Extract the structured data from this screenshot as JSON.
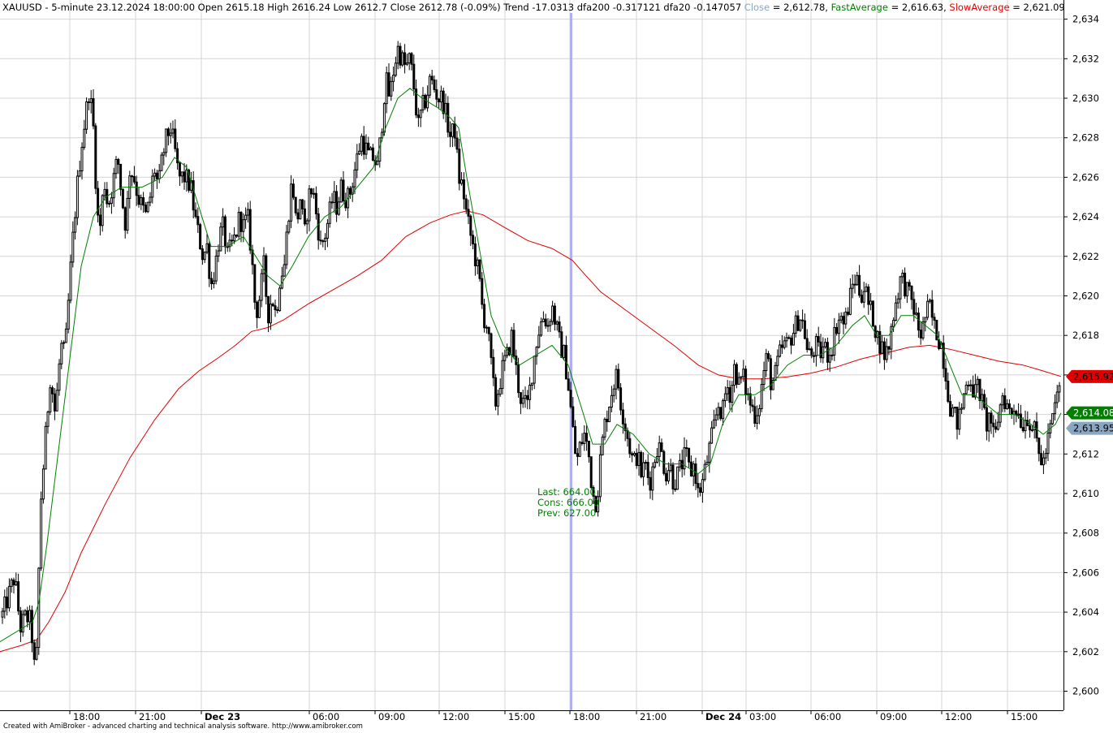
{
  "header": {
    "symbol_info": "XAUUSD - 5-minute 23.12.2024 18:00:00 Open 2615.18 High 2616.24 Low 2612.7 Close 2612.78 (-0.09%) Trend -17.0313 dfa200 -0.317121 dfa20 -0.147057",
    "close_label": "Close",
    "close_value": " = 2,612.78, ",
    "fast_label": "FastAverage",
    "fast_value": " = 2,616.63, ",
    "slow_label": "SlowAverage",
    "slow_value": " = 2,621.09"
  },
  "annotation": {
    "last": "Last: 664.00",
    "cons": "Cons: 666.00",
    "prev": "Prev: 627.00"
  },
  "price_tags": {
    "slow": "2,615.92",
    "fast": "2,614.08",
    "close": "2,613.95"
  },
  "footer": "Created with AmiBroker - advanced charting and technical analysis software. http://www.amibroker.com",
  "colors": {
    "close": "#8aa6c0",
    "fast": "#008000",
    "slow": "#e00000",
    "cursor": "#b0b0f0",
    "candle": "#000000"
  },
  "chart_data": {
    "type": "candlestick",
    "symbol": "XAUUSD",
    "interval": "5-minute",
    "y_axis": {
      "ylim": [
        2599.3,
        2634.8
      ],
      "ticks": [
        2600,
        2602,
        2604,
        2606,
        2608,
        2610,
        2612,
        2614,
        2616,
        2618,
        2620,
        2622,
        2624,
        2626,
        2628,
        2630,
        2632,
        2634
      ],
      "tick_labels": [
        "2,600",
        "2,602",
        "2,604",
        "2,606",
        "2,608",
        "2,610",
        "2,612",
        "2,614",
        "2,616",
        "2,618",
        "2,620",
        "2,622",
        "2,624",
        "2,626",
        "2,628",
        "2,630",
        "2,632",
        "2,634"
      ]
    },
    "x_axis": {
      "labels": [
        "18:00",
        "21:00",
        "Dec 23",
        "06:00",
        "09:00",
        "12:00",
        "15:00",
        "18:00",
        "21:00",
        "Dec 24",
        "03:00",
        "06:00",
        "09:00",
        "12:00",
        "15:00"
      ],
      "bold": [
        false,
        false,
        true,
        false,
        false,
        false,
        false,
        false,
        false,
        true,
        false,
        false,
        false,
        false,
        false
      ],
      "grid_lines": true
    },
    "price_path": [
      [
        0,
        2603.5
      ],
      [
        8,
        2604.5
      ],
      [
        18,
        2605.8
      ],
      [
        25,
        2603.2
      ],
      [
        32,
        2603.8
      ],
      [
        38,
        2603.5
      ],
      [
        44,
        2600.3
      ],
      [
        50,
        2609.5
      ],
      [
        56,
        2612.8
      ],
      [
        62,
        2616.0
      ],
      [
        68,
        2614.0
      ],
      [
        75,
        2617.5
      ],
      [
        80,
        2617.0
      ],
      [
        88,
        2622.0
      ],
      [
        95,
        2625.5
      ],
      [
        100,
        2627.5
      ],
      [
        105,
        2629.0
      ],
      [
        110,
        2630.5
      ],
      [
        115,
        2628.5
      ],
      [
        120,
        2624.0
      ],
      [
        124,
        2623.5
      ],
      [
        128,
        2626.0
      ],
      [
        133,
        2624.5
      ],
      [
        138,
        2625.5
      ],
      [
        145,
        2627.0
      ],
      [
        150,
        2625.0
      ],
      [
        155,
        2623.5
      ],
      [
        160,
        2626.5
      ],
      [
        165,
        2626.0
      ],
      [
        170,
        2625.0
      ],
      [
        175,
        2624.5
      ],
      [
        180,
        2624.0
      ],
      [
        185,
        2625.0
      ],
      [
        190,
        2626.5
      ],
      [
        195,
        2625.5
      ],
      [
        200,
        2627.0
      ],
      [
        205,
        2628.0
      ],
      [
        210,
        2628.5
      ],
      [
        215,
        2627.5
      ],
      [
        220,
        2626.0
      ],
      [
        228,
        2626.0
      ],
      [
        235,
        2625.5
      ],
      [
        240,
        2624.0
      ],
      [
        245,
        2623.0
      ],
      [
        250,
        2622.0
      ],
      [
        255,
        2622.5
      ],
      [
        260,
        2620.5
      ],
      [
        265,
        2621.5
      ],
      [
        270,
        2623.0
      ],
      [
        275,
        2623.5
      ],
      [
        280,
        2622.0
      ],
      [
        285,
        2622.5
      ],
      [
        290,
        2623.0
      ],
      [
        295,
        2624.0
      ],
      [
        300,
        2623.5
      ],
      [
        305,
        2624.0
      ],
      [
        310,
        2622.0
      ],
      [
        315,
        2619.0
      ],
      [
        320,
        2620.0
      ],
      [
        325,
        2621.5
      ],
      [
        330,
        2619.0
      ],
      [
        335,
        2620.0
      ],
      [
        340,
        2619.0
      ],
      [
        345,
        2621.0
      ],
      [
        350,
        2621.5
      ],
      [
        355,
        2624.0
      ],
      [
        360,
        2626.0
      ],
      [
        365,
        2623.5
      ],
      [
        370,
        2625.0
      ],
      [
        375,
        2623.0
      ],
      [
        380,
        2625.0
      ],
      [
        385,
        2625.5
      ],
      [
        390,
        2624.0
      ],
      [
        395,
        2622.5
      ],
      [
        400,
        2623.0
      ],
      [
        405,
        2624.0
      ],
      [
        410,
        2625.0
      ],
      [
        415,
        2624.5
      ],
      [
        420,
        2625.5
      ],
      [
        425,
        2625.0
      ],
      [
        430,
        2625.0
      ],
      [
        435,
        2626.0
      ],
      [
        440,
        2627.0
      ],
      [
        445,
        2628.0
      ],
      [
        450,
        2627.5
      ],
      [
        455,
        2627.0
      ],
      [
        460,
        2627.0
      ],
      [
        465,
        2626.5
      ],
      [
        470,
        2628.5
      ],
      [
        475,
        2631.0
      ],
      [
        480,
        2630.0
      ],
      [
        485,
        2631.5
      ],
      [
        490,
        2632.5
      ],
      [
        495,
        2632.0
      ],
      [
        500,
        2631.5
      ],
      [
        505,
        2632.0
      ],
      [
        510,
        2630.5
      ],
      [
        515,
        2628.5
      ],
      [
        520,
        2629.5
      ],
      [
        525,
        2630.0
      ],
      [
        530,
        2631.0
      ],
      [
        535,
        2630.5
      ],
      [
        540,
        2630.0
      ],
      [
        545,
        2630.0
      ],
      [
        550,
        2629.0
      ],
      [
        555,
        2628.0
      ],
      [
        560,
        2628.5
      ],
      [
        565,
        2626.0
      ],
      [
        570,
        2625.5
      ],
      [
        575,
        2624.0
      ],
      [
        580,
        2623.0
      ],
      [
        585,
        2622.0
      ],
      [
        590,
        2621.0
      ],
      [
        595,
        2619.0
      ],
      [
        600,
        2618.5
      ],
      [
        605,
        2616.5
      ],
      [
        610,
        2614.5
      ],
      [
        615,
        2615.5
      ],
      [
        620,
        2616.5
      ],
      [
        625,
        2617.0
      ],
      [
        630,
        2618.0
      ],
      [
        635,
        2616.5
      ],
      [
        640,
        2615.0
      ],
      [
        645,
        2614.5
      ],
      [
        650,
        2614.5
      ],
      [
        655,
        2616.0
      ],
      [
        660,
        2617.5
      ],
      [
        665,
        2618.5
      ],
      [
        670,
        2619.0
      ],
      [
        675,
        2618.5
      ],
      [
        680,
        2619.5
      ],
      [
        685,
        2618.5
      ],
      [
        690,
        2617.5
      ],
      [
        695,
        2617.0
      ],
      [
        700,
        2615.5
      ],
      [
        705,
        2613.5
      ],
      [
        710,
        2611.5
      ],
      [
        715,
        2612.5
      ],
      [
        720,
        2613.0
      ],
      [
        725,
        2612.0
      ],
      [
        730,
        2610.0
      ],
      [
        735,
        2609.5
      ],
      [
        740,
        2612.0
      ],
      [
        745,
        2613.5
      ],
      [
        750,
        2614.5
      ],
      [
        755,
        2615.5
      ],
      [
        760,
        2616.0
      ],
      [
        765,
        2614.5
      ],
      [
        770,
        2613.5
      ],
      [
        775,
        2612.5
      ],
      [
        780,
        2611.5
      ],
      [
        785,
        2612.0
      ],
      [
        790,
        2611.0
      ],
      [
        795,
        2611.5
      ],
      [
        800,
        2610.5
      ],
      [
        805,
        2611.5
      ],
      [
        810,
        2612.5
      ],
      [
        815,
        2612.0
      ],
      [
        820,
        2611.0
      ],
      [
        825,
        2611.5
      ],
      [
        830,
        2610.5
      ],
      [
        835,
        2611.0
      ],
      [
        840,
        2611.5
      ],
      [
        845,
        2612.0
      ],
      [
        850,
        2611.0
      ],
      [
        855,
        2611.5
      ],
      [
        860,
        2610.0
      ],
      [
        865,
        2610.5
      ],
      [
        870,
        2611.5
      ],
      [
        875,
        2612.5
      ],
      [
        880,
        2613.5
      ],
      [
        885,
        2614.5
      ],
      [
        890,
        2614.0
      ],
      [
        895,
        2615.5
      ],
      [
        900,
        2615.0
      ],
      [
        905,
        2616.5
      ],
      [
        910,
        2615.5
      ],
      [
        915,
        2616.0
      ],
      [
        920,
        2615.0
      ],
      [
        925,
        2614.5
      ],
      [
        930,
        2614.0
      ],
      [
        935,
        2614.5
      ],
      [
        940,
        2616.0
      ],
      [
        945,
        2617.0
      ],
      [
        950,
        2615.5
      ],
      [
        955,
        2616.0
      ],
      [
        960,
        2617.0
      ],
      [
        965,
        2617.5
      ],
      [
        970,
        2617.5
      ],
      [
        975,
        2618.0
      ],
      [
        980,
        2618.5
      ],
      [
        985,
        2619.0
      ],
      [
        990,
        2618.5
      ],
      [
        995,
        2617.0
      ],
      [
        1000,
        2617.0
      ],
      [
        1005,
        2617.5
      ],
      [
        1010,
        2617.0
      ],
      [
        1015,
        2617.5
      ],
      [
        1020,
        2617.0
      ],
      [
        1025,
        2617.5
      ],
      [
        1030,
        2618.5
      ],
      [
        1035,
        2619.0
      ],
      [
        1040,
        2618.5
      ],
      [
        1045,
        2619.5
      ],
      [
        1050,
        2620.5
      ],
      [
        1055,
        2621.0
      ],
      [
        1060,
        2620.0
      ],
      [
        1065,
        2620.5
      ],
      [
        1070,
        2619.5
      ],
      [
        1075,
        2619.0
      ],
      [
        1080,
        2618.0
      ],
      [
        1085,
        2617.5
      ],
      [
        1090,
        2617.0
      ],
      [
        1095,
        2617.5
      ],
      [
        1100,
        2619.0
      ],
      [
        1105,
        2620.0
      ],
      [
        1110,
        2621.0
      ],
      [
        1115,
        2620.5
      ],
      [
        1120,
        2620.0
      ],
      [
        1125,
        2619.5
      ],
      [
        1130,
        2618.5
      ],
      [
        1135,
        2618.0
      ],
      [
        1140,
        2619.0
      ],
      [
        1145,
        2619.5
      ],
      [
        1150,
        2618.5
      ],
      [
        1155,
        2618.0
      ],
      [
        1160,
        2617.5
      ],
      [
        1165,
        2616.0
      ],
      [
        1170,
        2614.5
      ],
      [
        1175,
        2614.0
      ],
      [
        1180,
        2613.5
      ],
      [
        1185,
        2614.5
      ],
      [
        1190,
        2615.5
      ],
      [
        1195,
        2616.0
      ],
      [
        1200,
        2615.0
      ],
      [
        1205,
        2615.5
      ],
      [
        1210,
        2614.5
      ],
      [
        1215,
        2613.5
      ],
      [
        1220,
        2614.0
      ],
      [
        1225,
        2612.5
      ],
      [
        1230,
        2614.0
      ],
      [
        1235,
        2615.0
      ],
      [
        1240,
        2614.5
      ],
      [
        1245,
        2614.0
      ],
      [
        1250,
        2614.5
      ],
      [
        1255,
        2614.0
      ],
      [
        1260,
        2613.5
      ],
      [
        1265,
        2614.0
      ],
      [
        1270,
        2613.5
      ],
      [
        1275,
        2613.0
      ],
      [
        1280,
        2612.0
      ],
      [
        1285,
        2611.5
      ],
      [
        1290,
        2612.5
      ],
      [
        1295,
        2613.5
      ],
      [
        1300,
        2614.5
      ],
      [
        1305,
        2615.5
      ],
      [
        1307,
        2613.95
      ]
    ],
    "fast_average": [
      [
        0,
        2602.5
      ],
      [
        40,
        2603.5
      ],
      [
        48,
        2604.5
      ],
      [
        58,
        2607.5
      ],
      [
        70,
        2611.5
      ],
      [
        85,
        2616.5
      ],
      [
        100,
        2621.5
      ],
      [
        115,
        2624.0
      ],
      [
        130,
        2625.0
      ],
      [
        150,
        2625.5
      ],
      [
        175,
        2625.5
      ],
      [
        200,
        2626.0
      ],
      [
        215,
        2627.0
      ],
      [
        230,
        2626.5
      ],
      [
        245,
        2624.5
      ],
      [
        260,
        2622.5
      ],
      [
        280,
        2622.5
      ],
      [
        300,
        2623.0
      ],
      [
        315,
        2622.0
      ],
      [
        330,
        2621.0
      ],
      [
        345,
        2620.5
      ],
      [
        360,
        2621.5
      ],
      [
        380,
        2623.0
      ],
      [
        400,
        2624.0
      ],
      [
        420,
        2624.5
      ],
      [
        440,
        2625.5
      ],
      [
        460,
        2626.5
      ],
      [
        475,
        2628.5
      ],
      [
        490,
        2630.0
      ],
      [
        505,
        2630.5
      ],
      [
        520,
        2630.0
      ],
      [
        540,
        2629.5
      ],
      [
        555,
        2629.0
      ],
      [
        565,
        2628.5
      ],
      [
        575,
        2626.0
      ],
      [
        590,
        2622.5
      ],
      [
        605,
        2619.0
      ],
      [
        620,
        2617.5
      ],
      [
        640,
        2616.5
      ],
      [
        660,
        2617.0
      ],
      [
        680,
        2617.5
      ],
      [
        700,
        2616.5
      ],
      [
        715,
        2614.5
      ],
      [
        730,
        2612.5
      ],
      [
        745,
        2612.5
      ],
      [
        760,
        2613.5
      ],
      [
        780,
        2613.0
      ],
      [
        800,
        2612.0
      ],
      [
        820,
        2611.5
      ],
      [
        840,
        2611.5
      ],
      [
        860,
        2611.0
      ],
      [
        875,
        2611.5
      ],
      [
        890,
        2613.5
      ],
      [
        910,
        2615.0
      ],
      [
        930,
        2615.0
      ],
      [
        950,
        2615.5
      ],
      [
        970,
        2616.5
      ],
      [
        990,
        2617.0
      ],
      [
        1010,
        2617.0
      ],
      [
        1030,
        2617.5
      ],
      [
        1050,
        2618.5
      ],
      [
        1065,
        2619.0
      ],
      [
        1080,
        2618.0
      ],
      [
        1095,
        2618.0
      ],
      [
        1110,
        2619.0
      ],
      [
        1125,
        2619.0
      ],
      [
        1140,
        2618.5
      ],
      [
        1155,
        2618.0
      ],
      [
        1170,
        2616.5
      ],
      [
        1185,
        2615.0
      ],
      [
        1200,
        2615.0
      ],
      [
        1215,
        2614.5
      ],
      [
        1230,
        2614.0
      ],
      [
        1250,
        2614.0
      ],
      [
        1270,
        2613.5
      ],
      [
        1285,
        2613.0
      ],
      [
        1300,
        2613.5
      ],
      [
        1307,
        2614.08
      ]
    ],
    "slow_average": [
      [
        0,
        2602.0
      ],
      [
        25,
        2602.3
      ],
      [
        45,
        2602.6
      ],
      [
        60,
        2603.5
      ],
      [
        80,
        2605.0
      ],
      [
        100,
        2607.0
      ],
      [
        130,
        2609.5
      ],
      [
        160,
        2611.8
      ],
      [
        190,
        2613.7
      ],
      [
        220,
        2615.3
      ],
      [
        245,
        2616.2
      ],
      [
        270,
        2616.9
      ],
      [
        290,
        2617.5
      ],
      [
        310,
        2618.2
      ],
      [
        330,
        2618.4
      ],
      [
        350,
        2618.8
      ],
      [
        380,
        2619.6
      ],
      [
        410,
        2620.3
      ],
      [
        440,
        2621.0
      ],
      [
        470,
        2621.8
      ],
      [
        500,
        2623.0
      ],
      [
        530,
        2623.7
      ],
      [
        555,
        2624.1
      ],
      [
        575,
        2624.3
      ],
      [
        595,
        2624.1
      ],
      [
        620,
        2623.5
      ],
      [
        650,
        2622.8
      ],
      [
        680,
        2622.4
      ],
      [
        705,
        2621.8
      ],
      [
        720,
        2621.1
      ],
      [
        740,
        2620.2
      ],
      [
        770,
        2619.3
      ],
      [
        800,
        2618.4
      ],
      [
        830,
        2617.5
      ],
      [
        860,
        2616.5
      ],
      [
        885,
        2616.0
      ],
      [
        910,
        2615.8
      ],
      [
        940,
        2615.8
      ],
      [
        970,
        2615.9
      ],
      [
        1000,
        2616.1
      ],
      [
        1030,
        2616.4
      ],
      [
        1060,
        2616.8
      ],
      [
        1090,
        2617.1
      ],
      [
        1120,
        2617.4
      ],
      [
        1145,
        2617.5
      ],
      [
        1170,
        2617.3
      ],
      [
        1200,
        2617.0
      ],
      [
        1230,
        2616.7
      ],
      [
        1260,
        2616.5
      ],
      [
        1285,
        2616.2
      ],
      [
        1307,
        2615.92
      ]
    ]
  }
}
